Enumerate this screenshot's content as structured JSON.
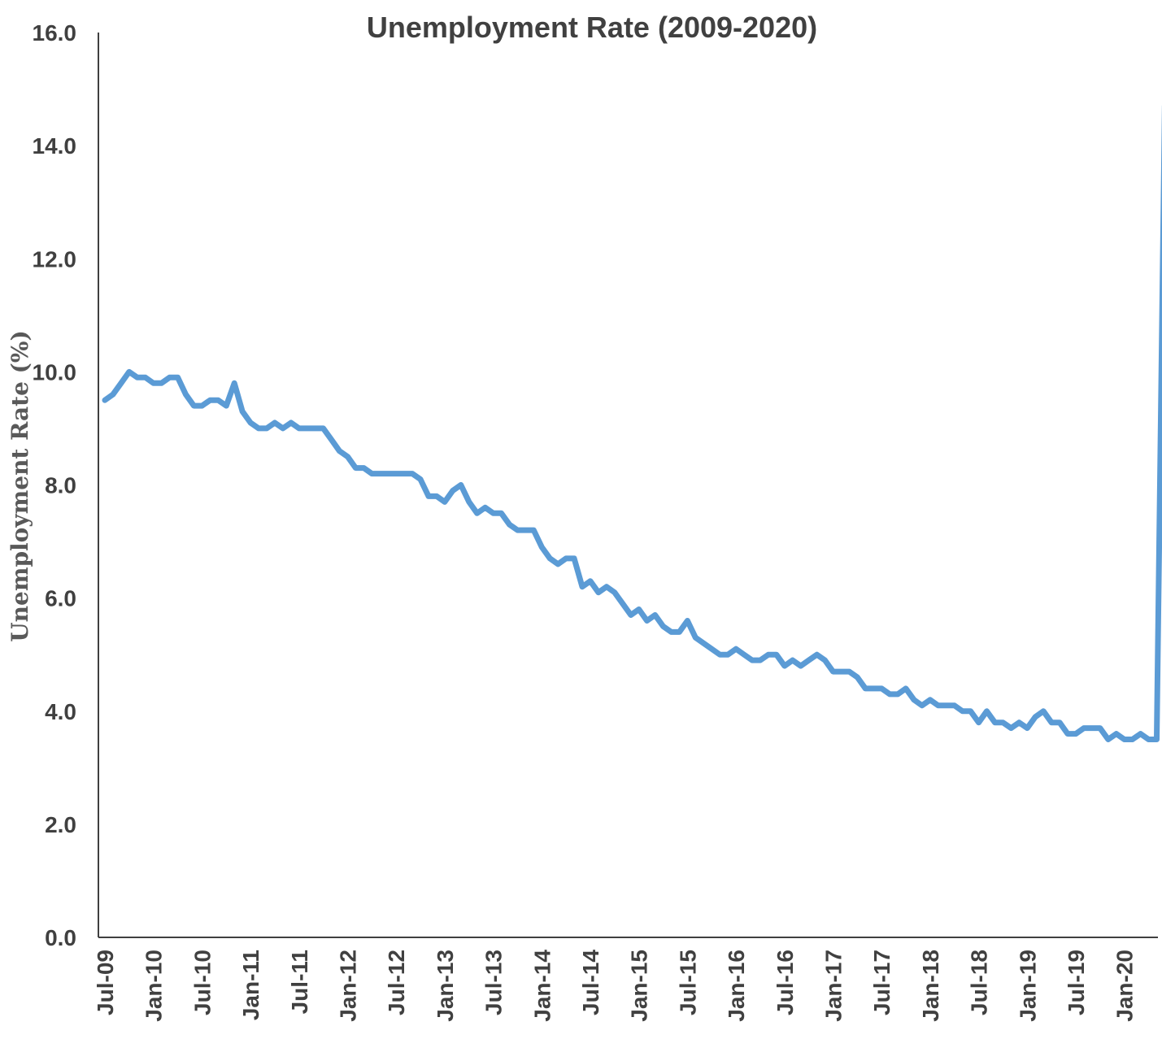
{
  "chart_data": {
    "type": "line",
    "title": "Unemployment Rate (2009-2020)",
    "xlabel": "",
    "ylabel": "Unemployment Rate (%)",
    "ylim": [
      0,
      16
    ],
    "yticks": [
      "0.0",
      "2.0",
      "4.0",
      "6.0",
      "8.0",
      "10.0",
      "12.0",
      "14.0",
      "16.0"
    ],
    "xticks": [
      "Jul-09",
      "Jan-10",
      "Jul-10",
      "Jan-11",
      "Jul-11",
      "Jan-12",
      "Jul-12",
      "Jan-13",
      "Jul-13",
      "Jan-14",
      "Jul-14",
      "Jan-15",
      "Jul-15",
      "Jan-16",
      "Jul-16",
      "Jan-17",
      "Jul-17",
      "Jan-18",
      "Jul-18",
      "Jan-19",
      "Jul-19",
      "Jan-20"
    ],
    "x_start": "Jul-09",
    "x_end": "Apr-20",
    "grid": false,
    "legend": "none",
    "line_color": "#5B9BD5",
    "series": [
      {
        "values": [
          9.5,
          9.6,
          9.8,
          10.0,
          9.9,
          9.9,
          9.8,
          9.8,
          9.9,
          9.9,
          9.6,
          9.4,
          9.4,
          9.5,
          9.5,
          9.4,
          9.8,
          9.3,
          9.1,
          9.0,
          9.0,
          9.1,
          9.0,
          9.1,
          9.0,
          9.0,
          9.0,
          9.0,
          8.8,
          8.6,
          8.5,
          8.3,
          8.3,
          8.2,
          8.2,
          8.2,
          8.2,
          8.2,
          8.2,
          8.1,
          7.8,
          7.8,
          7.7,
          7.9,
          8.0,
          7.7,
          7.5,
          7.6,
          7.5,
          7.5,
          7.3,
          7.2,
          7.2,
          7.2,
          6.9,
          6.7,
          6.6,
          6.7,
          6.7,
          6.2,
          6.3,
          6.1,
          6.2,
          6.1,
          5.9,
          5.7,
          5.8,
          5.6,
          5.7,
          5.5,
          5.4,
          5.4,
          5.6,
          5.3,
          5.2,
          5.1,
          5.0,
          5.0,
          5.1,
          5.0,
          4.9,
          4.9,
          5.0,
          5.0,
          4.8,
          4.9,
          4.8,
          4.9,
          5.0,
          4.9,
          4.7,
          4.7,
          4.7,
          4.6,
          4.4,
          4.4,
          4.4,
          4.3,
          4.3,
          4.4,
          4.2,
          4.1,
          4.2,
          4.1,
          4.1,
          4.1,
          4.0,
          4.0,
          3.8,
          4.0,
          3.8,
          3.8,
          3.7,
          3.8,
          3.7,
          3.9,
          4.0,
          3.8,
          3.8,
          3.6,
          3.6,
          3.7,
          3.7,
          3.7,
          3.5,
          3.6,
          3.5,
          3.5,
          3.6,
          3.5,
          3.5,
          14.7
        ]
      }
    ]
  }
}
